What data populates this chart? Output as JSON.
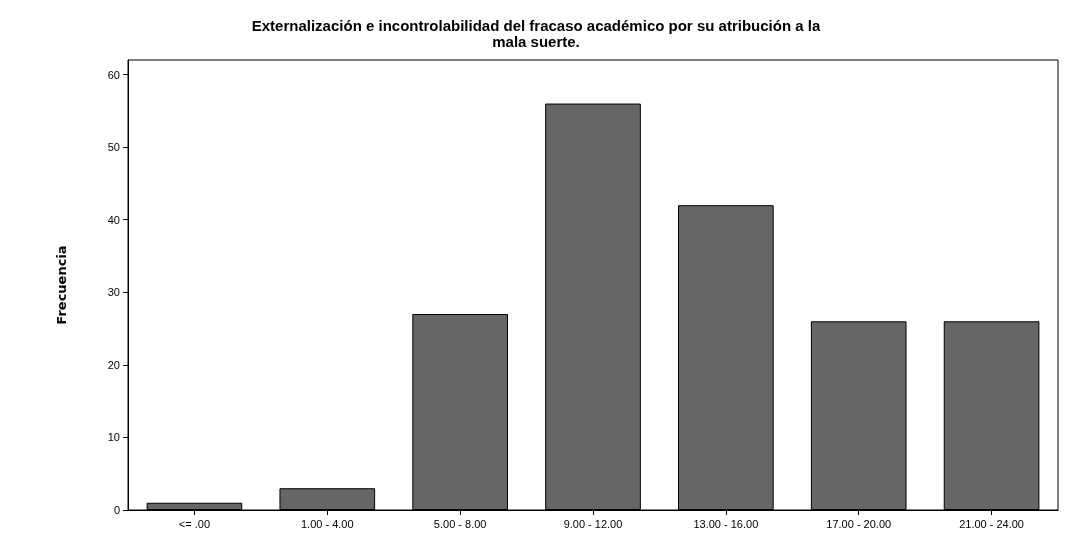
{
  "chart_data": {
    "type": "bar",
    "title": "Externalización e incontrolabilidad del fracaso académico por su atribución a la\nmala suerte.",
    "ylabel": "Frecuencia",
    "categories": [
      "<= .00",
      "1.00 - 4.00",
      "5.00 - 8.00",
      "9.00 - 12.00",
      "13.00 - 16.00",
      "17.00 - 20.00",
      "21.00 - 24.00"
    ],
    "values": [
      1,
      3,
      27,
      56,
      42,
      26,
      26
    ],
    "color": "#666666",
    "ylim": [
      0,
      62
    ],
    "yticks": [
      0,
      10,
      20,
      30,
      40,
      50,
      60
    ],
    "grid": false
  }
}
